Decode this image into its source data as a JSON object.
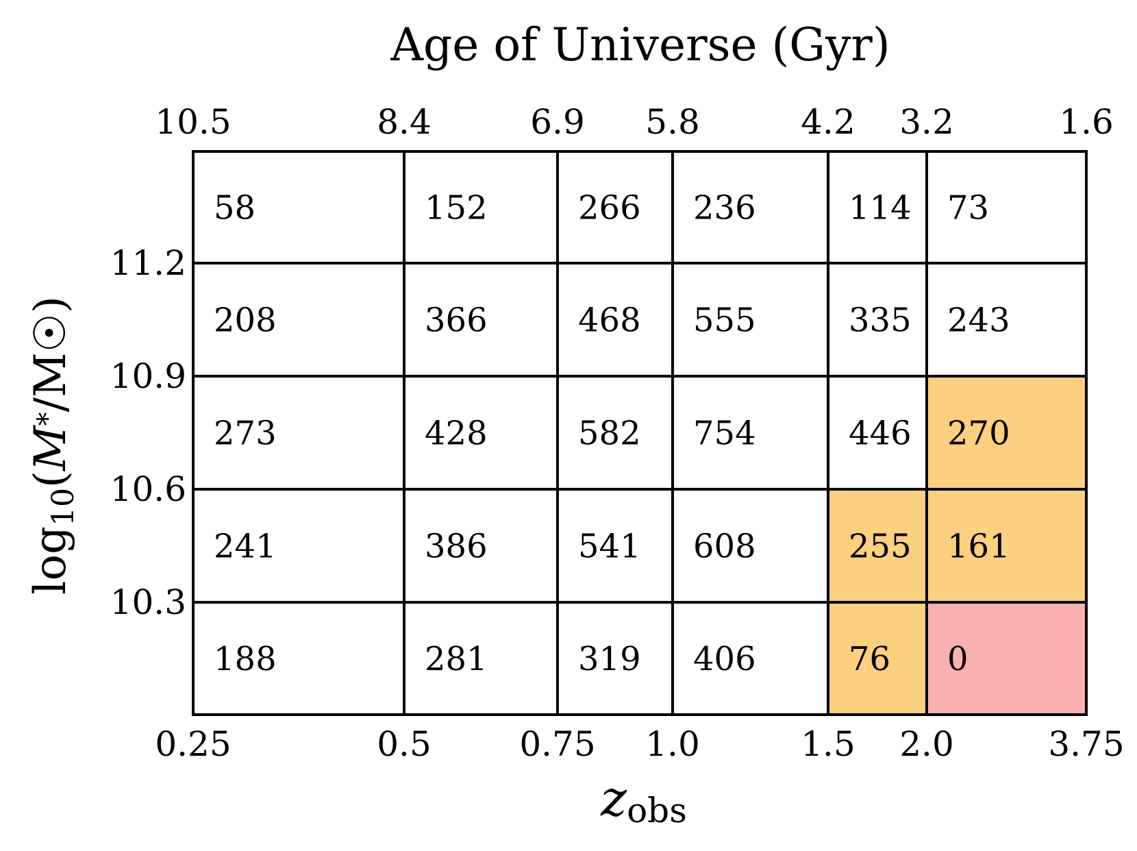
{
  "chart_data": {
    "type": "heatmap",
    "title": "Age of Universe (Gyr)",
    "xlabel": "z_obs",
    "ylabel": "log10(M*/M☉)",
    "x_edges": [
      0.25,
      0.5,
      0.75,
      1.0,
      1.5,
      2.0,
      3.75
    ],
    "x_tick_labels": [
      "0.25",
      "0.5",
      "0.75",
      "1.0",
      "1.5",
      "2.0",
      "3.75"
    ],
    "top_axis_labels": [
      "10.5",
      "8.4",
      "6.9",
      "5.8",
      "4.2",
      "3.2",
      "1.6"
    ],
    "y_tick_labels": [
      "11.2",
      "10.9",
      "10.6",
      "10.3"
    ],
    "rows": [
      {
        "counts": [
          58,
          152,
          266,
          236,
          114,
          73
        ]
      },
      {
        "counts": [
          208,
          366,
          468,
          555,
          335,
          243
        ]
      },
      {
        "counts": [
          273,
          428,
          582,
          754,
          446,
          270
        ]
      },
      {
        "counts": [
          241,
          386,
          541,
          608,
          255,
          161
        ]
      },
      {
        "counts": [
          188,
          281,
          319,
          406,
          76,
          0
        ]
      }
    ],
    "cell_colors": [
      [
        "white",
        "white",
        "white",
        "white",
        "white",
        "white"
      ],
      [
        "white",
        "white",
        "white",
        "white",
        "white",
        "white"
      ],
      [
        "white",
        "white",
        "white",
        "white",
        "white",
        "orange"
      ],
      [
        "white",
        "white",
        "white",
        "white",
        "orange",
        "orange"
      ],
      [
        "white",
        "white",
        "white",
        "white",
        "orange",
        "red"
      ]
    ],
    "colors": {
      "white": "#ffffff",
      "orange": "#fcd07f",
      "red": "#fcb1b1",
      "grid": "#000000"
    },
    "grid": true
  }
}
